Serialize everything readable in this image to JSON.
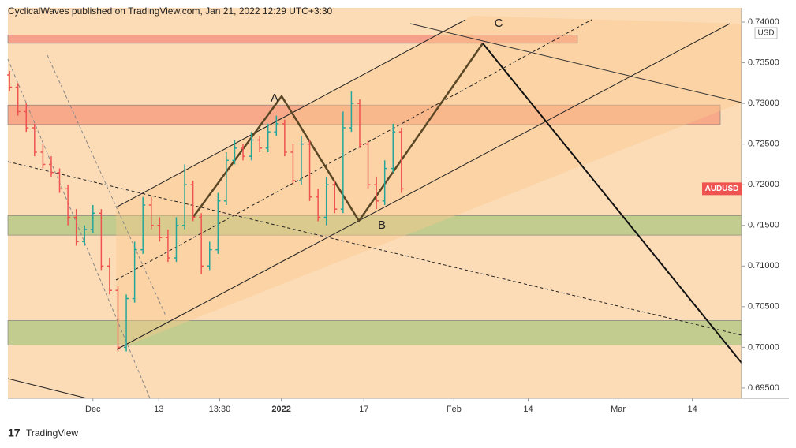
{
  "chart_data": {
    "type": "ohlc",
    "header": "CyclicalWaves published on TradingView.com, Jan 21, 2022 12:29 UTC+3:30",
    "currency": "USD",
    "symbol": "AUDUSD",
    "brand": "TradingView",
    "wave_labels": [
      "A",
      "B",
      "C"
    ],
    "up_color": "#26a69a",
    "down_color": "#ef5350",
    "x": [
      -10,
      -9,
      -8,
      -7,
      -6,
      -5,
      -4,
      -3,
      -2,
      -1,
      0,
      1,
      2,
      3,
      4,
      5,
      6,
      7,
      8,
      9,
      10,
      11,
      12,
      13,
      14,
      15,
      16,
      17,
      18,
      19,
      20,
      21,
      22,
      23,
      24,
      25,
      26,
      27,
      28,
      29,
      30,
      31,
      32,
      33,
      34,
      35,
      36,
      37
    ],
    "open": [
      0.7335,
      0.732,
      0.729,
      0.727,
      0.724,
      0.7225,
      0.7215,
      0.7195,
      0.716,
      0.713,
      0.7145,
      0.7165,
      0.71,
      0.707,
      0.7,
      0.706,
      0.712,
      0.7175,
      0.715,
      0.7135,
      0.711,
      0.715,
      0.72,
      0.716,
      0.71,
      0.712,
      0.718,
      0.723,
      0.7245,
      0.7235,
      0.7255,
      0.7245,
      0.7265,
      0.7275,
      0.724,
      0.7205,
      0.725,
      0.7185,
      0.716,
      0.72,
      0.717,
      0.727,
      0.73,
      0.725,
      0.72,
      0.718,
      0.722,
      0.7265
    ],
    "high": [
      0.734,
      0.7325,
      0.73,
      0.7275,
      0.725,
      0.7235,
      0.722,
      0.72,
      0.717,
      0.715,
      0.7175,
      0.717,
      0.711,
      0.7075,
      0.7065,
      0.713,
      0.7185,
      0.7185,
      0.716,
      0.7145,
      0.716,
      0.7225,
      0.7205,
      0.7165,
      0.713,
      0.719,
      0.724,
      0.7255,
      0.725,
      0.7265,
      0.726,
      0.7275,
      0.7285,
      0.728,
      0.725,
      0.726,
      0.7255,
      0.7195,
      0.721,
      0.7205,
      0.729,
      0.7315,
      0.7305,
      0.7255,
      0.721,
      0.723,
      0.7275,
      0.727
    ],
    "low": [
      0.7315,
      0.7285,
      0.7265,
      0.7235,
      0.722,
      0.721,
      0.719,
      0.715,
      0.7125,
      0.7125,
      0.714,
      0.7095,
      0.7065,
      0.6995,
      0.6995,
      0.7055,
      0.7115,
      0.7145,
      0.713,
      0.7105,
      0.7105,
      0.7145,
      0.7155,
      0.709,
      0.7095,
      0.7115,
      0.7175,
      0.7225,
      0.723,
      0.723,
      0.724,
      0.724,
      0.726,
      0.7235,
      0.72,
      0.72,
      0.718,
      0.7155,
      0.715,
      0.7165,
      0.7165,
      0.7265,
      0.7245,
      0.7195,
      0.717,
      0.7175,
      0.7215,
      0.719
    ],
    "close": [
      0.732,
      0.729,
      0.727,
      0.724,
      0.7225,
      0.7215,
      0.7195,
      0.716,
      0.713,
      0.7145,
      0.7165,
      0.71,
      0.707,
      0.7,
      0.706,
      0.712,
      0.7175,
      0.715,
      0.7135,
      0.711,
      0.715,
      0.72,
      0.716,
      0.71,
      0.712,
      0.718,
      0.723,
      0.7245,
      0.7235,
      0.7255,
      0.7245,
      0.7265,
      0.7275,
      0.724,
      0.7205,
      0.725,
      0.7185,
      0.716,
      0.72,
      0.717,
      0.727,
      0.73,
      0.725,
      0.72,
      0.718,
      0.722,
      0.7265,
      0.7195
    ],
    "zones": [
      {
        "color": "#f4a08a",
        "range": [
          0.7374,
          0.7384
        ]
      },
      {
        "color": "#f7a98a",
        "range": [
          0.7274,
          0.7298
        ]
      },
      {
        "color": "#c2cc8e",
        "range": [
          0.7138,
          0.7162
        ]
      },
      {
        "color": "#c2cc8e",
        "range": [
          0.7003,
          0.7033
        ]
      }
    ],
    "xlim": [
      -10.2,
      77.8
    ],
    "xticks": [
      {
        "value": 0,
        "label": "Dec"
      },
      {
        "value": 7.9,
        "label": "13"
      },
      {
        "value": 15.2,
        "label": "13:30"
      },
      {
        "value": 22.6,
        "label": "2022"
      },
      {
        "value": 32.5,
        "label": "17"
      },
      {
        "value": 43.3,
        "label": "Feb"
      },
      {
        "value": 52.2,
        "label": "14"
      },
      {
        "value": 63,
        "label": "Mar"
      },
      {
        "value": 71.9,
        "label": "14"
      }
    ],
    "ylim": [
      0.69373,
      0.74175
    ],
    "yticks": [
      {
        "value": 0.74,
        "label": "0.74000"
      },
      {
        "value": 0.735,
        "label": "0.73500"
      },
      {
        "value": 0.73,
        "label": "0.73000"
      },
      {
        "value": 0.725,
        "label": "0.72500"
      },
      {
        "value": 0.72,
        "label": "0.72000"
      },
      {
        "value": 0.715,
        "label": "0.71500"
      },
      {
        "value": 0.71,
        "label": "0.71000"
      },
      {
        "value": 0.705,
        "label": "0.70500"
      },
      {
        "value": 0.7,
        "label": "0.70000"
      },
      {
        "value": 0.695,
        "label": "0.69500"
      }
    ]
  }
}
